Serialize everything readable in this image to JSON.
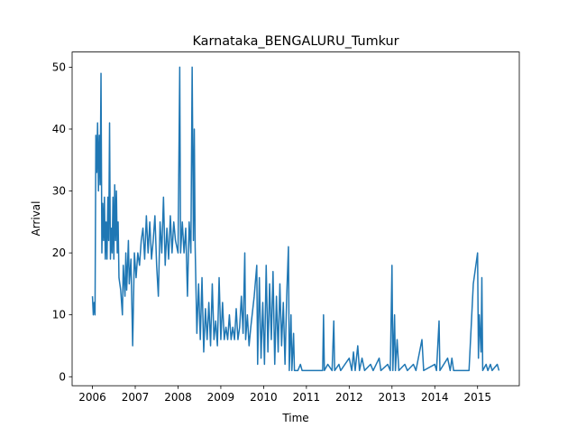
{
  "chart_data": {
    "type": "line",
    "title": "Karnataka_BENGALURU_Tumkur",
    "x_label": "Time",
    "y_label": "Arrival",
    "x": [
      2006.0,
      2006.02,
      2006.04,
      2006.06,
      2006.08,
      2006.1,
      2006.12,
      2006.14,
      2006.16,
      2006.18,
      2006.2,
      2006.22,
      2006.24,
      2006.26,
      2006.28,
      2006.3,
      2006.32,
      2006.34,
      2006.36,
      2006.38,
      2006.4,
      2006.42,
      2006.44,
      2006.46,
      2006.48,
      2006.5,
      2006.52,
      2006.54,
      2006.56,
      2006.58,
      2006.6,
      2006.62,
      2006.66,
      2006.7,
      2006.72,
      2006.76,
      2006.78,
      2006.8,
      2006.84,
      2006.86,
      2006.9,
      2006.94,
      2006.98,
      2007.02,
      2007.06,
      2007.1,
      2007.14,
      2007.18,
      2007.22,
      2007.26,
      2007.3,
      2007.34,
      2007.38,
      2007.42,
      2007.46,
      2007.5,
      2007.54,
      2007.58,
      2007.62,
      2007.66,
      2007.7,
      2007.74,
      2007.78,
      2007.82,
      2007.86,
      2007.9,
      2007.94,
      2008.0,
      2008.04,
      2008.06,
      2008.1,
      2008.14,
      2008.18,
      2008.22,
      2008.26,
      2008.3,
      2008.33,
      2008.36,
      2008.38,
      2008.4,
      2008.42,
      2008.44,
      2008.48,
      2008.52,
      2008.56,
      2008.6,
      2008.64,
      2008.68,
      2008.72,
      2008.76,
      2008.8,
      2008.84,
      2008.88,
      2008.92,
      2008.96,
      2009.0,
      2009.04,
      2009.08,
      2009.12,
      2009.16,
      2009.2,
      2009.24,
      2009.28,
      2009.32,
      2009.36,
      2009.4,
      2009.44,
      2009.48,
      2009.52,
      2009.56,
      2009.58,
      2009.62,
      2009.66,
      2009.7,
      2009.78,
      2009.84,
      2009.86,
      2009.9,
      2009.94,
      2009.98,
      2010.02,
      2010.06,
      2010.1,
      2010.14,
      2010.18,
      2010.22,
      2010.26,
      2010.3,
      2010.34,
      2010.38,
      2010.42,
      2010.46,
      2010.5,
      2010.54,
      2010.58,
      2010.6,
      2010.64,
      2010.66,
      2010.7,
      2010.72,
      2010.8,
      2010.86,
      2010.9,
      2011.0,
      2011.38,
      2011.4,
      2011.42,
      2011.5,
      2011.6,
      2011.64,
      2011.66,
      2011.76,
      2011.8,
      2012.0,
      2012.06,
      2012.1,
      2012.14,
      2012.2,
      2012.24,
      2012.3,
      2012.36,
      2012.5,
      2012.56,
      2012.7,
      2012.74,
      2012.9,
      2012.96,
      2013.0,
      2013.02,
      2013.06,
      2013.08,
      2013.12,
      2013.16,
      2013.3,
      2013.36,
      2013.5,
      2013.56,
      2013.7,
      2013.74,
      2014.0,
      2014.04,
      2014.1,
      2014.12,
      2014.3,
      2014.36,
      2014.4,
      2014.44,
      2014.8,
      2014.9,
      2015.0,
      2015.02,
      2015.04,
      2015.08,
      2015.1,
      2015.12,
      2015.2,
      2015.24,
      2015.3,
      2015.34,
      2015.46,
      2015.5
    ],
    "series": [
      {
        "name": "Arrival",
        "color": "#1f77b4",
        "values": [
          13,
          10,
          12,
          10,
          39,
          33,
          41,
          30,
          39,
          31,
          49,
          20,
          28,
          22,
          29,
          19,
          25,
          19,
          29,
          22,
          41,
          19,
          24,
          20,
          29,
          19,
          31,
          22,
          30,
          20,
          25,
          16,
          14,
          10,
          18,
          13,
          20,
          14,
          22,
          15,
          19,
          5,
          20,
          16,
          20,
          18,
          22,
          24,
          19,
          26,
          20,
          25,
          19,
          22,
          26,
          18,
          13,
          25,
          20,
          29,
          18,
          24,
          19,
          26,
          20,
          25,
          22,
          20,
          50,
          20,
          25,
          20,
          24,
          13,
          25,
          20,
          50,
          22,
          40,
          21,
          14,
          7,
          15,
          6,
          16,
          4,
          11,
          6,
          12,
          5,
          15,
          6,
          9,
          5,
          16,
          6,
          12,
          6,
          8,
          6,
          10,
          6,
          8,
          6,
          11,
          6,
          8,
          13,
          7,
          20,
          6,
          10,
          5,
          8,
          13,
          18,
          2,
          16,
          3,
          12,
          2,
          18,
          4,
          15,
          6,
          17,
          2,
          13,
          4,
          15,
          5,
          12,
          2,
          13,
          21,
          1,
          10,
          1,
          7,
          1,
          1,
          2,
          1,
          1,
          1,
          10,
          1,
          2,
          1,
          9,
          1,
          2,
          1,
          3,
          1,
          4,
          1,
          5,
          1,
          3,
          1,
          2,
          1,
          3,
          1,
          2,
          1,
          18,
          1,
          10,
          1,
          6,
          1,
          2,
          1,
          2,
          1,
          6,
          1,
          2,
          1,
          9,
          1,
          3,
          1,
          3,
          1,
          1,
          15,
          20,
          3,
          10,
          4,
          16,
          1,
          2,
          1,
          2,
          1,
          2,
          1
        ]
      }
    ],
    "xlim": [
      2005.525,
      2015.975
    ],
    "ylim": [
      -1.45,
      52.45
    ],
    "xticks": [
      2006,
      2007,
      2008,
      2009,
      2010,
      2011,
      2012,
      2013,
      2014,
      2015
    ],
    "yticks": [
      0,
      10,
      20,
      30,
      40,
      50
    ]
  }
}
